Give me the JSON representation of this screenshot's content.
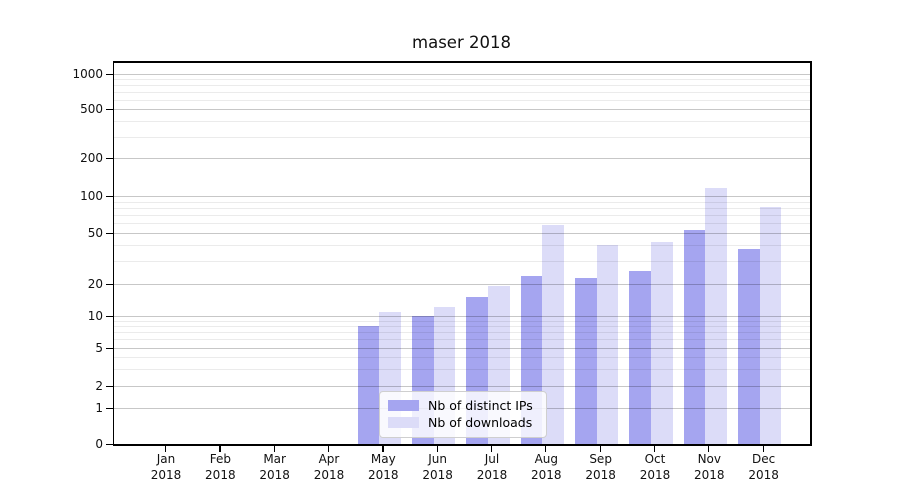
{
  "title": "maser 2018",
  "legend": {
    "items": [
      {
        "label": "Nb of distinct IPs",
        "color": "#a5a5f0"
      },
      {
        "label": "Nb of downloads",
        "color": "#dcdcf8"
      }
    ]
  },
  "chart_data": {
    "type": "bar",
    "title": "maser 2018",
    "categories": [
      "Jan",
      "Feb",
      "Mar",
      "Apr",
      "May",
      "Jun",
      "Jul",
      "Aug",
      "Sep",
      "Oct",
      "Nov",
      "Dec"
    ],
    "x_year_label": "2018",
    "series": [
      {
        "name": "Nb of distinct IPs",
        "color": "#a5a5f0",
        "values": [
          0,
          0,
          0,
          0,
          8,
          10,
          15,
          23,
          22,
          25,
          53,
          37
        ]
      },
      {
        "name": "Nb of downloads",
        "color": "#dcdcf8",
        "values": [
          0,
          0,
          0,
          0,
          11,
          12,
          19,
          58,
          40,
          42,
          115,
          82
        ]
      }
    ],
    "yscale": "symlog",
    "ylim": [
      0,
      1500
    ],
    "y_ticks": [
      0,
      1,
      2,
      5,
      10,
      20,
      50,
      100,
      200,
      500,
      1000
    ],
    "y_minor_ticks": [
      3,
      4,
      6,
      7,
      8,
      9,
      30,
      40,
      60,
      70,
      80,
      90,
      300,
      400,
      600,
      700,
      800,
      900
    ],
    "grid": true,
    "legend_position": "lower center"
  }
}
